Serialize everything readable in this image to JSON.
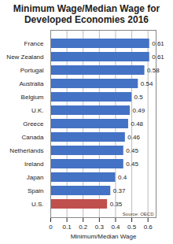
{
  "chart_data": {
    "type": "bar",
    "title": "Minimum Wage/Median Wage for Developed Economies 2016",
    "orientation": "horizontal",
    "categories": [
      "France",
      "New Zealand",
      "Portugal",
      "Australia",
      "Belgium",
      "U.K.",
      "Greece",
      "Canada",
      "Netherlands",
      "Ireland",
      "Japan",
      "Spain",
      "U.S."
    ],
    "values": [
      0.61,
      0.61,
      0.58,
      0.54,
      0.5,
      0.49,
      0.48,
      0.46,
      0.45,
      0.45,
      0.4,
      0.37,
      0.35
    ],
    "colors": [
      "#4472c4",
      "#4472c4",
      "#4472c4",
      "#4472c4",
      "#4472c4",
      "#4472c4",
      "#4472c4",
      "#4472c4",
      "#4472c4",
      "#4472c4",
      "#4472c4",
      "#4472c4",
      "#c0504d"
    ],
    "x_label": "Minimum/Median Wage",
    "xlim": [
      0,
      0.65
    ],
    "xticks": [
      0,
      0.1,
      0.2,
      0.3,
      0.4,
      0.5,
      0.6
    ],
    "grid": true,
    "data_labels": true,
    "annotations": [
      "Source: OECD"
    ]
  }
}
